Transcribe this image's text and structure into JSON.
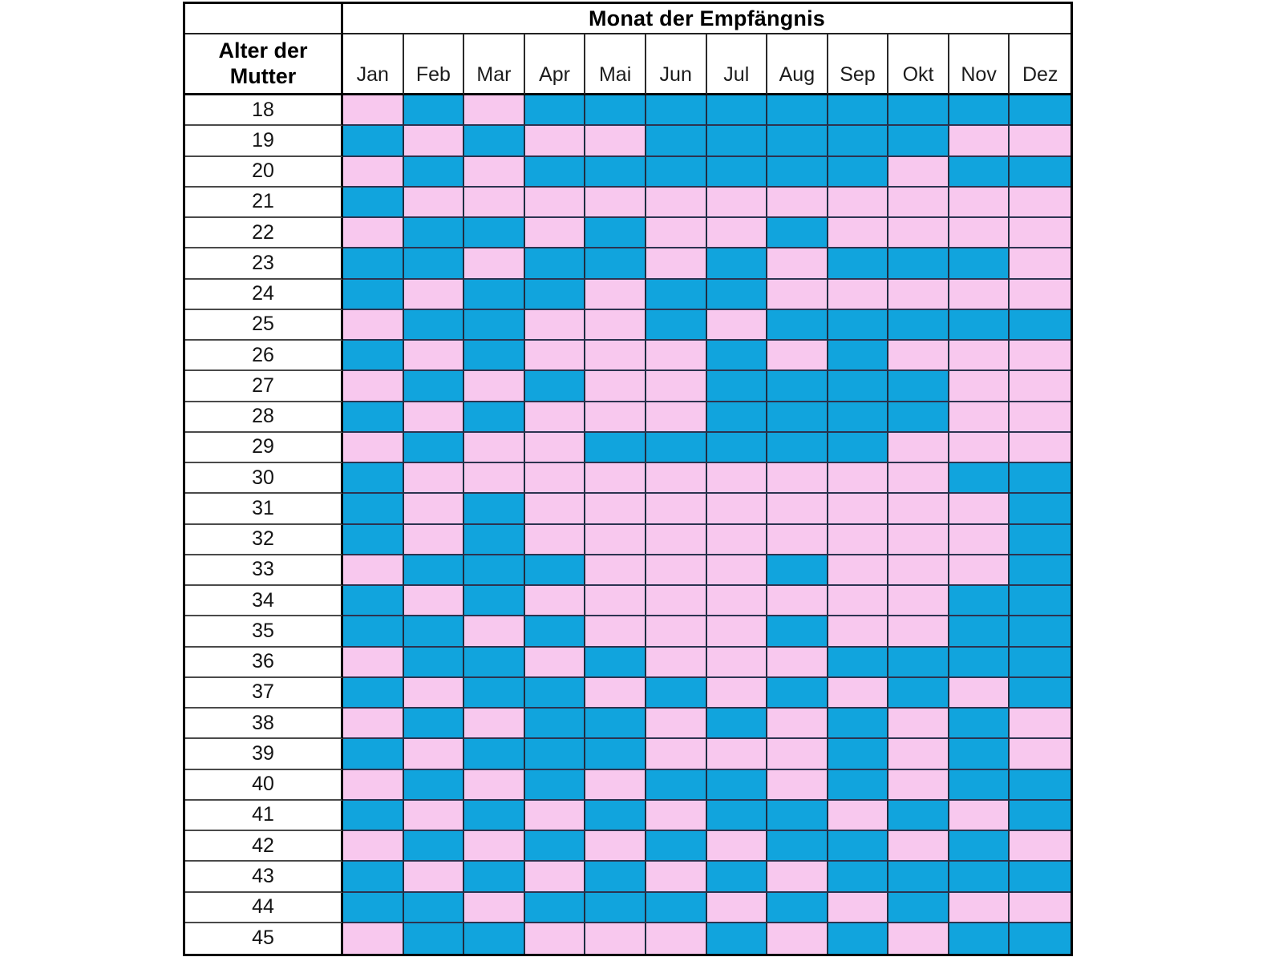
{
  "page": {
    "background": "#ffffff"
  },
  "table": {
    "row_header_line1": "Alter der",
    "row_header_line2": "Mutter"
  },
  "chart_data": {
    "type": "heatmap",
    "title": "Monat der Empfängnis",
    "ylabel": "Alter der Mutter",
    "legend_position": "none",
    "grid_lines": true,
    "columns": [
      "Jan",
      "Feb",
      "Mar",
      "Apr",
      "Mai",
      "Jun",
      "Jul",
      "Aug",
      "Sep",
      "Okt",
      "Nov",
      "Dez"
    ],
    "row_ages": [
      18,
      19,
      20,
      21,
      22,
      23,
      24,
      25,
      26,
      27,
      28,
      29,
      30,
      31,
      32,
      33,
      34,
      35,
      36,
      37,
      38,
      39,
      40,
      41,
      42,
      43,
      44,
      45
    ],
    "cell_color_key": {
      "B": "blue",
      "P": "pink"
    },
    "colors": {
      "B": "#11a4dd",
      "P": "#f8c8ee"
    },
    "grid": [
      "PBPBBBBBBBBB",
      "BPBPPBBBBBPP",
      "PBPBBBBBBPBB",
      "BPPPPPPPPPPP",
      "PBBPBPPBPPPP",
      "BBPBBPBPBBBP",
      "BPBBPBBPPPPP",
      "PBBPPBPBBBBB",
      "BPBPPPBPBPPP",
      "PBPBPPBBBBPP",
      "BPBPPPBBBBPP",
      "PBPPBBBBBPPP",
      "BPPPPPPPPPBB",
      "BPBPPPPPPPPB",
      "BPBPPPPPPPPB",
      "PBBBPPPBPPPB",
      "BPBPPPPPPPBB",
      "BBPBPPPBPPBB",
      "PBBPBPPPBBBB",
      "BPBBPBPBPBPB",
      "PBPBBPBPBPBP",
      "BPBBBPPPBPBP",
      "PBPBPBBPBPBB",
      "BPBPBPBBPBPB",
      "PBPBPBPBBPBP",
      "BPBPBPBPBBBB",
      "BBPBBBPBPBPP",
      "PBBPPPBPBPBB"
    ]
  }
}
